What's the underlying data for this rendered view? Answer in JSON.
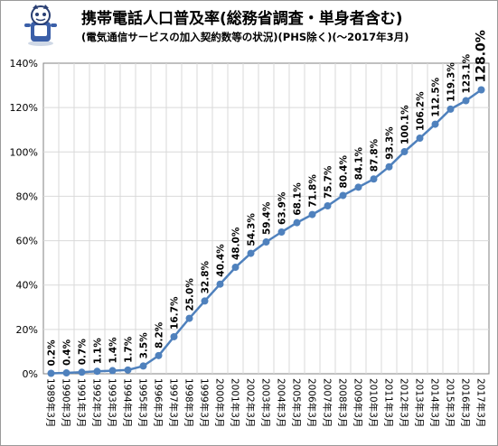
{
  "title": "携帯電話人口普及率(総務省調査・単身者含む)",
  "subtitle": "(電気通信サービスの加入契約数等の状況)(PHS除く)(〜2017年3月)",
  "colors": {
    "series": "#4f81bd",
    "grid": "#d9d9d9",
    "axis": "#808080",
    "text": "#000000"
  },
  "chart_data": {
    "type": "line",
    "title": "携帯電話人口普及率(総務省調査・単身者含む)",
    "subtitle": "(電気通信サービスの加入契約数等の状況)(PHS除く)(〜2017年3月)",
    "xlabel": "",
    "ylabel": "",
    "ylim": [
      0,
      140
    ],
    "yticks": [
      "0%",
      "20%",
      "40%",
      "60%",
      "80%",
      "100%",
      "120%",
      "140%"
    ],
    "grid": true,
    "legend": "none",
    "categories": [
      "1989年3月",
      "1990年3月",
      "1991年3月",
      "1992年3月",
      "1993年3月",
      "1994年3月",
      "1995年3月",
      "1996年3月",
      "1997年3月",
      "1998年3月",
      "1999年3月",
      "2000年3月",
      "2001年3月",
      "2002年3月",
      "2003年3月",
      "2004年3月",
      "2005年3月",
      "2006年3月",
      "2007年3月",
      "2008年3月",
      "2009年3月",
      "2010年3月",
      "2011年3月",
      "2012年3月",
      "2013年3月",
      "2014年3月",
      "2015年3月",
      "2016年3月",
      "2017年3月"
    ],
    "values": [
      0.2,
      0.4,
      0.7,
      1.1,
      1.4,
      1.7,
      3.5,
      8.2,
      16.7,
      25.0,
      32.8,
      40.4,
      48.0,
      54.3,
      59.4,
      63.9,
      68.1,
      71.8,
      75.7,
      80.4,
      84.1,
      87.8,
      93.3,
      100.1,
      106.2,
      112.5,
      119.3,
      123.1,
      128.0
    ],
    "data_labels": [
      "0.2%",
      "0.4%",
      "0.7%",
      "1.1%",
      "1.4%",
      "1.7%",
      "3.5%",
      "8.2%",
      "16.7%",
      "25.0%",
      "32.8%",
      "40.4%",
      "48.0%",
      "54.3%",
      "59.4%",
      "63.9%",
      "68.1%",
      "71.8%",
      "75.7%",
      "80.4%",
      "84.1%",
      "87.8%",
      "93.3%",
      "100.1%",
      "106.2%",
      "112.5%",
      "119.3%",
      "123.1%",
      "128.0%"
    ]
  }
}
